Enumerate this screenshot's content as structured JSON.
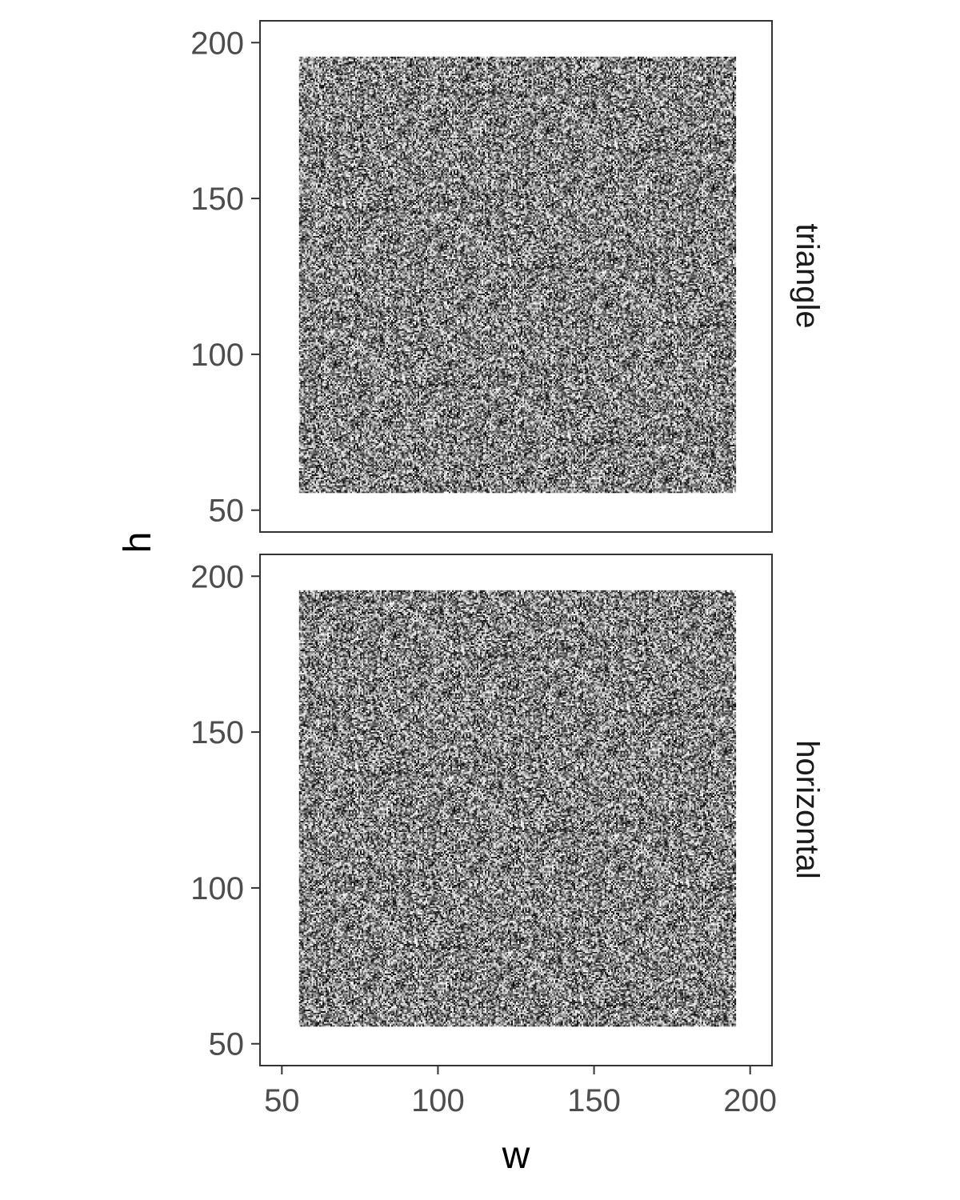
{
  "chart_data": {
    "type": "heatmap",
    "title": "",
    "xlabel": "w",
    "ylabel": "h",
    "xlim": [
      43,
      207
    ],
    "ylim": [
      43,
      207
    ],
    "x_ticks": [
      50,
      100,
      150,
      200
    ],
    "y_ticks": [
      50,
      100,
      150,
      200
    ],
    "cell_x_range": [
      56,
      195
    ],
    "cell_y_range": [
      56,
      195
    ],
    "fill_low": "#ffffff",
    "fill_high": "#000000",
    "grid": false,
    "legend": "none",
    "facets": [
      "triangle",
      "horizontal"
    ]
  }
}
